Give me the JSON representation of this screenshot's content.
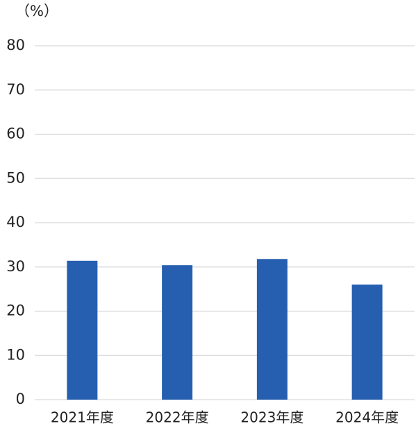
{
  "chart_data": {
    "type": "bar",
    "y_label": "（%）",
    "categories": [
      "2021年度",
      "2022年度",
      "2023年度",
      "2024年度"
    ],
    "values": [
      31.4,
      30.4,
      31.8,
      26.0
    ],
    "color": "#265fb0",
    "ylim": [
      0,
      80
    ],
    "yticks": [
      0,
      10,
      20,
      30,
      40,
      50,
      60,
      70,
      80
    ],
    "grid": true
  }
}
